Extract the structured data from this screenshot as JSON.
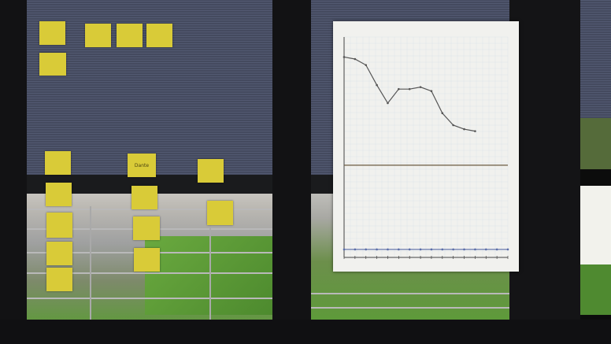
{
  "scene": {
    "description_free": true,
    "colors": {
      "window_frame": "#121214",
      "blind": "#4a4f63",
      "sticky_note": "#d9cb38",
      "chart_paper": "#f1f1ee",
      "chart_line": "#555555",
      "chart_title_ink": "#4b5ea8",
      "grass": "#5e9a3a"
    }
  },
  "left_pane": {
    "notes": [
      {
        "label": ""
      },
      {
        "label": ""
      },
      {
        "label": ""
      },
      {
        "label": ""
      },
      {
        "label": ""
      },
      {
        "label": ""
      },
      {
        "label": ""
      },
      {
        "label": "Dante"
      },
      {
        "label": ""
      },
      {
        "label": ""
      },
      {
        "label": ""
      },
      {
        "label": ""
      },
      {
        "label": ""
      },
      {
        "label": ""
      },
      {
        "label": ""
      },
      {
        "label": ""
      }
    ]
  },
  "chart_data": {
    "type": "line",
    "title": "",
    "xlabel": "",
    "ylabel": "",
    "grid": true,
    "x": [
      0,
      1,
      2,
      3,
      4,
      5,
      6,
      7,
      8,
      9,
      10,
      11,
      12,
      13,
      14,
      15
    ],
    "series": [
      {
        "values": [
          100,
          99,
          96,
          86,
          77,
          84,
          84,
          85,
          83,
          72,
          66,
          64,
          63,
          null,
          null,
          null
        ]
      },
      {
        "values": [
          4,
          4,
          4,
          4,
          4,
          4,
          4,
          4,
          4,
          4,
          4,
          4,
          4,
          4,
          4,
          4
        ]
      }
    ],
    "reference_line": 46,
    "ylim": [
      0,
      110
    ]
  }
}
